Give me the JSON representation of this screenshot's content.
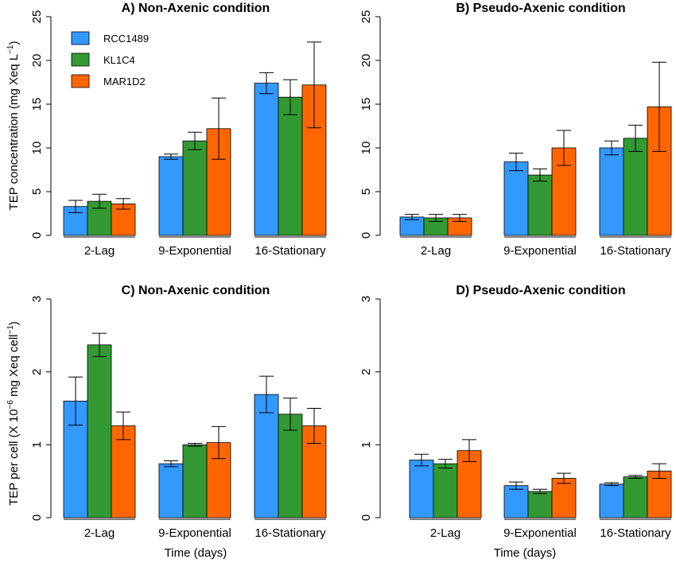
{
  "colors": {
    "RCC1489": "#3399ff",
    "KL1C4": "#339933",
    "MAR1D2": "#ff6600"
  },
  "legend": {
    "items": [
      "RCC1489",
      "KL1C4",
      "MAR1D2"
    ]
  },
  "ylabel_top": "TEP concentration (mg Xeq L",
  "ylabel_top_sup": "−1",
  "ylabel_top_end": ")",
  "ylabel_bottom_a": "TEP per cell (X 10",
  "ylabel_bottom_sup1": "−6",
  "ylabel_bottom_b": " mg Xeq cell",
  "ylabel_bottom_sup2": "−1",
  "ylabel_bottom_end": ")",
  "xlabel": "Time (days)",
  "chart_data": [
    {
      "type": "bar",
      "title": "A) Non-Axenic condition",
      "categories": [
        "2-Lag",
        "9-Exponential",
        "16-Stationary"
      ],
      "ylim": [
        0,
        25
      ],
      "yticks": [
        0,
        5,
        10,
        15,
        20,
        25
      ],
      "series": [
        {
          "name": "RCC1489",
          "values": [
            3.3,
            9.0,
            17.4
          ],
          "errors": [
            0.7,
            0.3,
            1.2
          ]
        },
        {
          "name": "KL1C4",
          "values": [
            3.9,
            10.8,
            15.8
          ],
          "errors": [
            0.8,
            1.0,
            2.0
          ]
        },
        {
          "name": "MAR1D2",
          "values": [
            3.6,
            12.2,
            17.2
          ],
          "errors": [
            0.6,
            3.5,
            4.9
          ]
        }
      ]
    },
    {
      "type": "bar",
      "title": "B) Pseudo-Axenic condition",
      "categories": [
        "2-Lag",
        "9-Exponential",
        "16-Stationary"
      ],
      "ylim": [
        0,
        25
      ],
      "yticks": [
        0,
        5,
        10,
        15,
        20,
        25
      ],
      "series": [
        {
          "name": "RCC1489",
          "values": [
            2.1,
            8.4,
            10.0
          ],
          "errors": [
            0.3,
            1.0,
            0.8
          ]
        },
        {
          "name": "KL1C4",
          "values": [
            2.0,
            6.9,
            11.1
          ],
          "errors": [
            0.4,
            0.7,
            1.5
          ]
        },
        {
          "name": "MAR1D2",
          "values": [
            2.0,
            10.0,
            14.7
          ],
          "errors": [
            0.4,
            2.0,
            5.1
          ]
        }
      ]
    },
    {
      "type": "bar",
      "title": "C) Non-Axenic condition",
      "categories": [
        "2-Lag",
        "9-Exponential",
        "16-Stationary"
      ],
      "ylim": [
        0,
        3
      ],
      "yticks": [
        0,
        1,
        2,
        3
      ],
      "series": [
        {
          "name": "RCC1489",
          "values": [
            1.6,
            0.74,
            1.69
          ],
          "errors": [
            0.33,
            0.04,
            0.25
          ]
        },
        {
          "name": "KL1C4",
          "values": [
            2.37,
            1.0,
            1.42
          ],
          "errors": [
            0.16,
            0.02,
            0.22
          ]
        },
        {
          "name": "MAR1D2",
          "values": [
            1.26,
            1.03,
            1.26
          ],
          "errors": [
            0.19,
            0.22,
            0.24
          ]
        }
      ]
    },
    {
      "type": "bar",
      "title": "D) Pseudo-Axenic condition",
      "categories": [
        "2-Lag",
        "9-Exponential",
        "16-Stationary"
      ],
      "ylim": [
        0,
        3
      ],
      "yticks": [
        0,
        1,
        2,
        3
      ],
      "series": [
        {
          "name": "RCC1489",
          "values": [
            0.79,
            0.44,
            0.46
          ],
          "errors": [
            0.08,
            0.05,
            0.02
          ]
        },
        {
          "name": "KL1C4",
          "values": [
            0.74,
            0.36,
            0.56
          ],
          "errors": [
            0.06,
            0.03,
            0.02
          ]
        },
        {
          "name": "MAR1D2",
          "values": [
            0.92,
            0.54,
            0.64
          ],
          "errors": [
            0.15,
            0.07,
            0.1
          ]
        }
      ]
    }
  ]
}
